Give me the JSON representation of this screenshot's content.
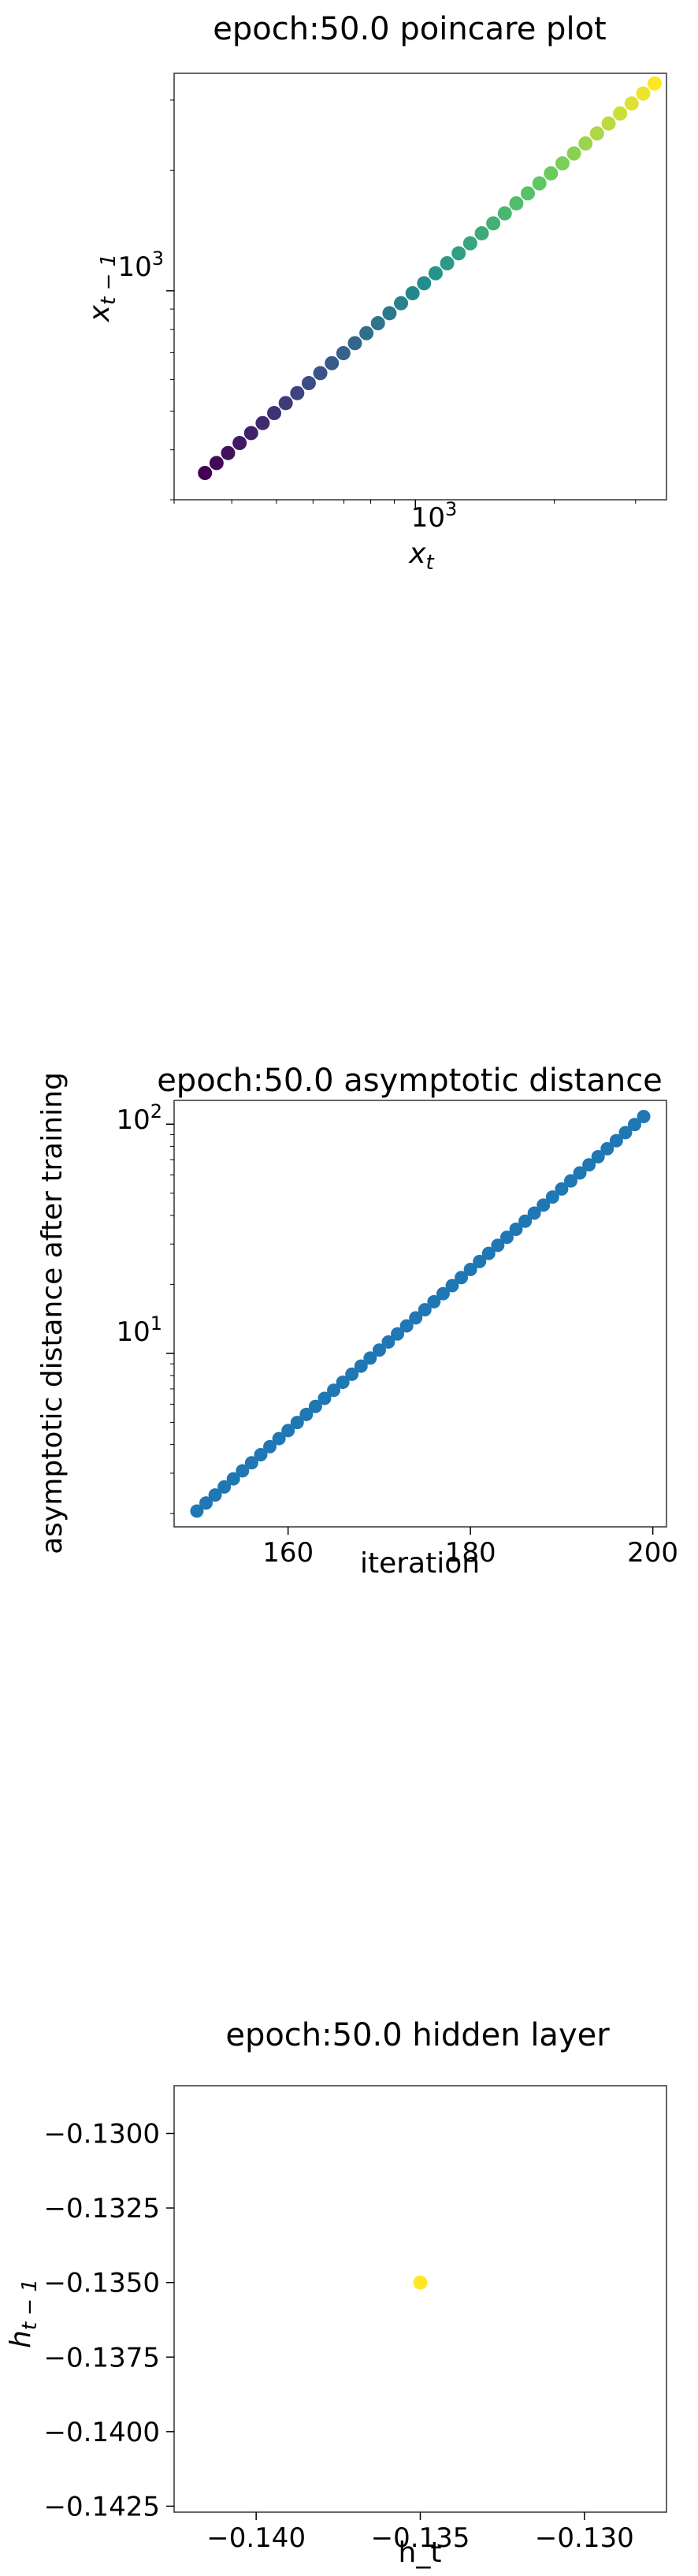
{
  "chart_data": [
    {
      "type": "scatter",
      "title": "epoch:50.0 poincare plot",
      "xlabel": "x_t",
      "ylabel": "x_{t-1}",
      "xscale": "log",
      "yscale": "log",
      "xlim": [
        300,
        3500
      ],
      "ylim": [
        300,
        3500
      ],
      "xticks": [
        {
          "value": 1000,
          "label": "10^3"
        }
      ],
      "yticks": [
        {
          "value": 1000,
          "label": "10^3"
        }
      ],
      "colormap": "viridis",
      "grid": false,
      "x": [
        350,
        1000,
        3300
      ],
      "y": [
        350,
        1000,
        3300
      ],
      "points": 40
    },
    {
      "type": "scatter",
      "title": "epoch:50.0 asymptotic distance",
      "xlabel": "iteration",
      "ylabel": "asymptotic distance after training",
      "yscale": "log",
      "xlim": [
        147.5,
        201.5
      ],
      "ylim": [
        1.75,
        127
      ],
      "xticks": [
        {
          "value": 160,
          "label": "160"
        },
        {
          "value": 180,
          "label": "180"
        },
        {
          "value": 200,
          "label": "200"
        }
      ],
      "yticks": [
        {
          "value": 10,
          "label": "10^1"
        },
        {
          "value": 100,
          "label": "10^2"
        }
      ],
      "color": "#1f77b4",
      "grid": false,
      "x_start": 150,
      "x_end": 199,
      "y_start": 2.05,
      "y_end": 108
    },
    {
      "type": "scatter",
      "title": "epoch:50.0 hidden layer",
      "xlabel": "h_t",
      "ylabel": "h_{t-1}",
      "xlim": [
        -0.1425,
        -0.1275
      ],
      "ylim": [
        -0.1427,
        -0.1284
      ],
      "xticks": [
        {
          "value": -0.14,
          "label": "−0.140"
        },
        {
          "value": -0.135,
          "label": "−0.135"
        },
        {
          "value": -0.13,
          "label": "−0.130"
        }
      ],
      "yticks": [
        {
          "value": -0.13,
          "label": "−0.1300"
        },
        {
          "value": -0.1325,
          "label": "−0.1325"
        },
        {
          "value": -0.135,
          "label": "−0.1350"
        },
        {
          "value": -0.1375,
          "label": "−0.1375"
        },
        {
          "value": -0.14,
          "label": "−0.1400"
        },
        {
          "value": -0.1425,
          "label": "−0.1425"
        }
      ],
      "color": "#fde725",
      "grid": false,
      "x": [
        -0.135
      ],
      "y": [
        -0.135
      ]
    }
  ]
}
